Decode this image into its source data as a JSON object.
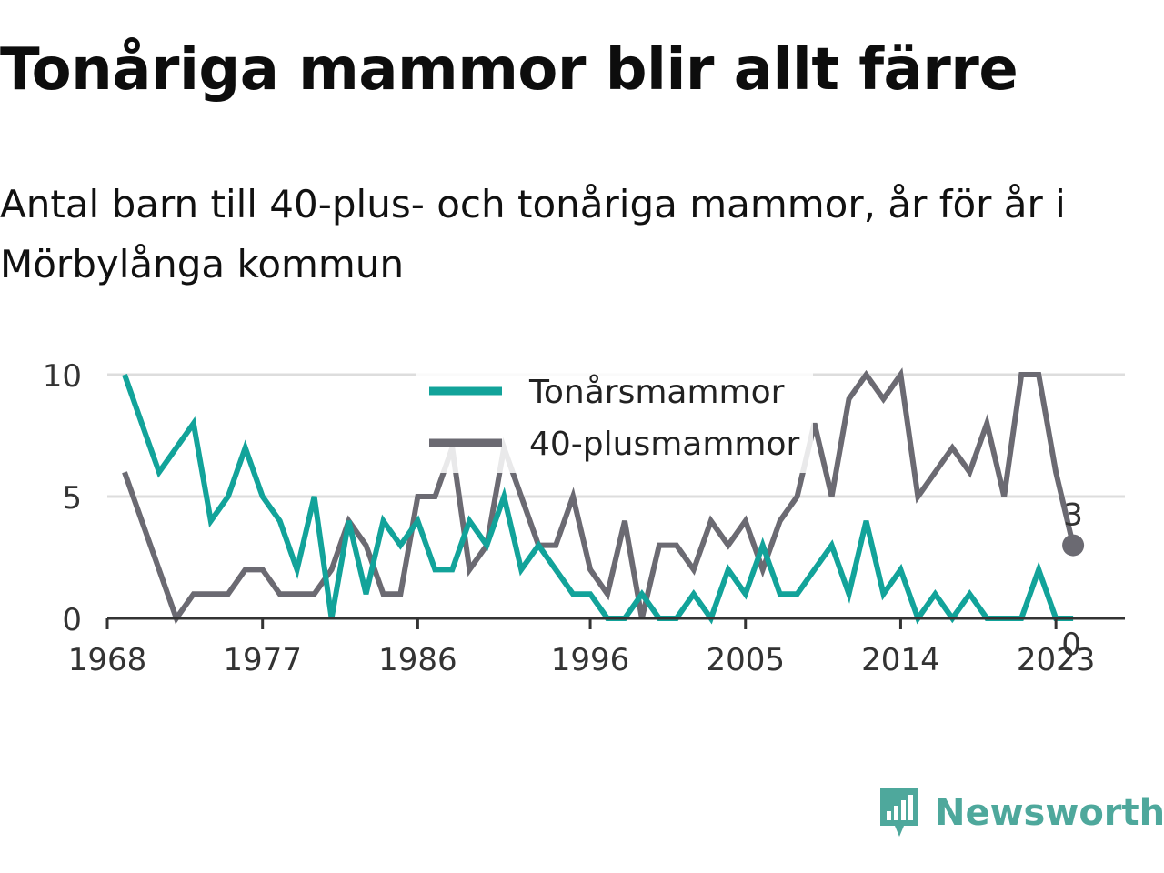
{
  "title": "Tonåriga mammor blir allt färre",
  "subtitle": "Antal barn till 40-plus- och tonåriga mammor, år för år i Mörbylånga kommun",
  "brand": "Newsworthy",
  "colors": {
    "teen": "#12a39a",
    "forty": "#6b6a72",
    "grid": "#dddddd",
    "axis": "#333333",
    "brand": "#4ea89c"
  },
  "chart_data": {
    "type": "line",
    "x": [
      1969,
      1970,
      1971,
      1972,
      1973,
      1974,
      1975,
      1976,
      1977,
      1978,
      1979,
      1980,
      1981,
      1982,
      1983,
      1984,
      1985,
      1986,
      1987,
      1988,
      1989,
      1990,
      1991,
      1992,
      1993,
      1994,
      1995,
      1996,
      1997,
      1998,
      1999,
      2000,
      2001,
      2002,
      2003,
      2004,
      2005,
      2006,
      2007,
      2008,
      2009,
      2010,
      2011,
      2012,
      2013,
      2014,
      2015,
      2016,
      2017,
      2018,
      2019,
      2020,
      2021,
      2022,
      2023,
      2024
    ],
    "series": [
      {
        "name": "Tonårsmammor",
        "color": "#12a39a",
        "values": [
          10,
          8,
          6,
          7,
          8,
          4,
          5,
          7,
          5,
          4,
          2,
          5,
          0,
          4,
          1,
          4,
          3,
          4,
          2,
          2,
          4,
          3,
          5,
          2,
          3,
          2,
          1,
          1,
          0,
          0,
          1,
          0,
          0,
          1,
          0,
          2,
          1,
          3,
          1,
          1,
          2,
          3,
          1,
          4,
          1,
          2,
          0,
          1,
          0,
          1,
          0,
          0,
          0,
          2,
          0,
          0
        ]
      },
      {
        "name": "40-plusmammor",
        "color": "#6b6a72",
        "values": [
          6,
          4,
          2,
          0,
          1,
          1,
          1,
          2,
          2,
          1,
          1,
          1,
          2,
          4,
          3,
          1,
          1,
          5,
          5,
          7,
          2,
          3,
          7,
          5,
          3,
          3,
          5,
          2,
          1,
          4,
          0,
          3,
          3,
          2,
          4,
          3,
          4,
          2,
          4,
          5,
          8,
          5,
          9,
          10,
          9,
          10,
          5,
          6,
          7,
          6,
          8,
          5,
          10,
          10,
          6,
          3
        ]
      }
    ],
    "x_ticks": [
      1968,
      1977,
      1986,
      1996,
      2005,
      2014,
      2023
    ],
    "y_ticks": [
      0,
      5,
      10
    ],
    "xlim": [
      1968,
      2027
    ],
    "ylim": [
      0,
      10
    ],
    "end_labels": [
      "3",
      "0"
    ],
    "legend": "top-center",
    "grid": "horizontal"
  }
}
